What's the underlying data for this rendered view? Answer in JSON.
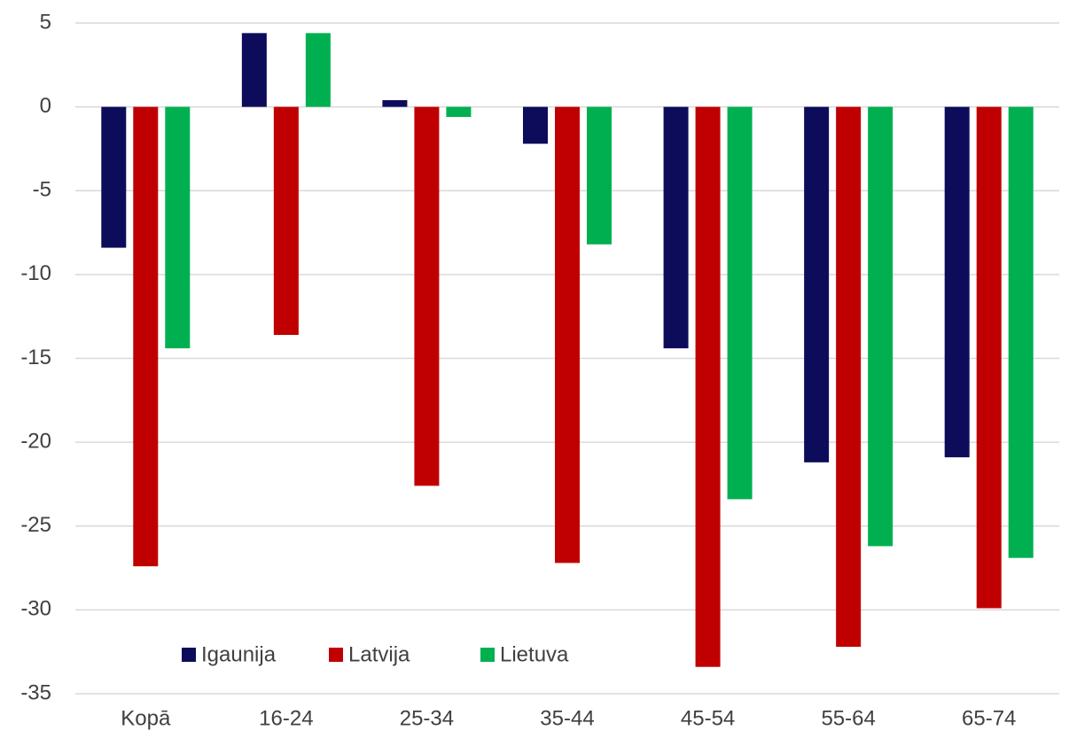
{
  "chart_data": {
    "type": "bar",
    "categories": [
      "Kopā",
      "16-24",
      "25-34",
      "35-44",
      "45-54",
      "55-64",
      "65-74"
    ],
    "series": [
      {
        "name": "Igaunija",
        "color": "#0c0c5a",
        "values": [
          -8.4,
          4.4,
          0.4,
          -2.2,
          -14.4,
          -21.2,
          -20.9
        ]
      },
      {
        "name": "Latvija",
        "color": "#c00000",
        "values": [
          -27.4,
          -13.6,
          -22.6,
          -27.2,
          -33.4,
          -32.2,
          -29.9
        ]
      },
      {
        "name": "Lietuva",
        "color": "#00b050",
        "values": [
          -14.4,
          4.4,
          -0.6,
          -8.2,
          -23.4,
          -26.2,
          -26.9
        ]
      }
    ],
    "ylim": [
      -35,
      5
    ],
    "yticks": [
      -35,
      -30,
      -25,
      -20,
      -15,
      -10,
      -5,
      0,
      5
    ],
    "grid": true,
    "legend": "lower left"
  }
}
